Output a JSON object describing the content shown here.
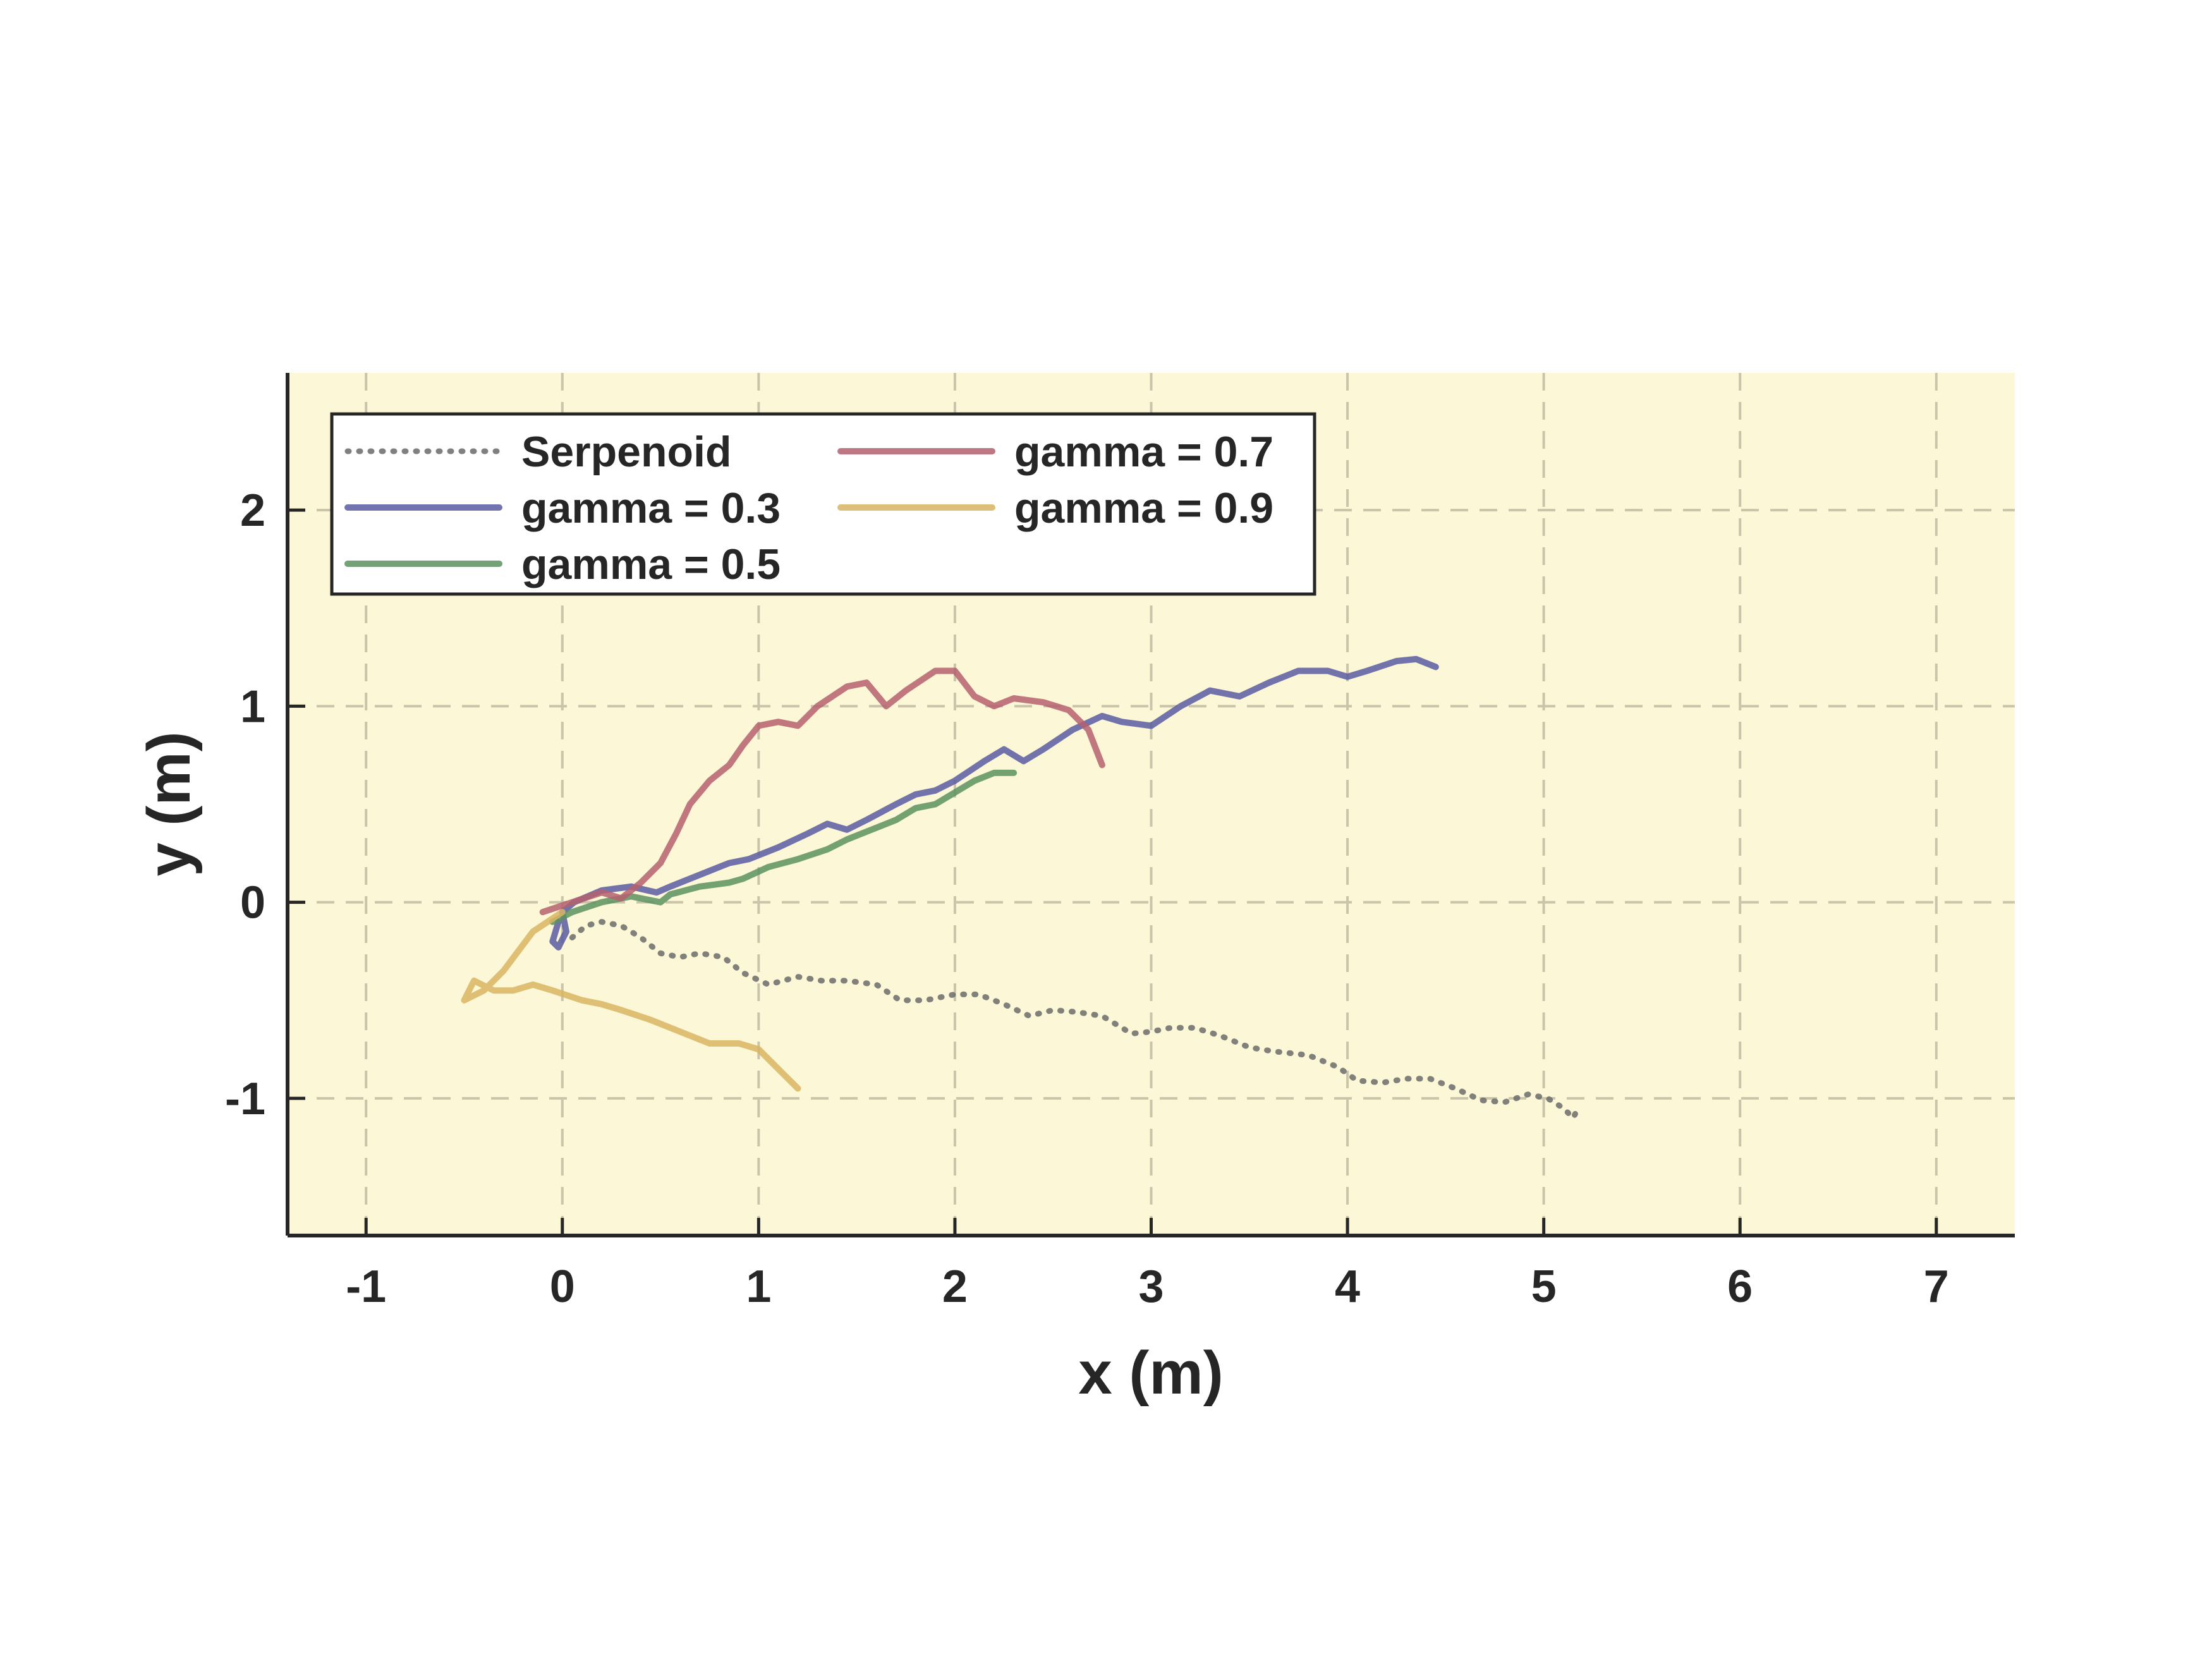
{
  "chart_data": {
    "type": "line",
    "xlabel": "x (m)",
    "ylabel": "y (m)",
    "xlim": [
      -1.4,
      7.4
    ],
    "ylim": [
      -1.7,
      2.7
    ],
    "xticks": [
      -1,
      0,
      1,
      2,
      3,
      4,
      5,
      6,
      7
    ],
    "yticks": [
      -1,
      0,
      1,
      2
    ],
    "grid": true,
    "legend_position": "top-left",
    "colors": {
      "background": "#fcf7d6",
      "grid": "#c9c4aa",
      "axis": "#262626"
    },
    "series": [
      {
        "name": "Serpenoid",
        "color": "#6b6b6b",
        "dashed": true,
        "points": [
          [
            0.05,
            -0.18
          ],
          [
            0.12,
            -0.12
          ],
          [
            0.2,
            -0.1
          ],
          [
            0.3,
            -0.12
          ],
          [
            0.4,
            -0.18
          ],
          [
            0.5,
            -0.26
          ],
          [
            0.6,
            -0.28
          ],
          [
            0.7,
            -0.26
          ],
          [
            0.82,
            -0.28
          ],
          [
            0.92,
            -0.36
          ],
          [
            1.05,
            -0.42
          ],
          [
            1.2,
            -0.38
          ],
          [
            1.32,
            -0.4
          ],
          [
            1.45,
            -0.4
          ],
          [
            1.6,
            -0.42
          ],
          [
            1.72,
            -0.5
          ],
          [
            1.85,
            -0.5
          ],
          [
            2.0,
            -0.47
          ],
          [
            2.12,
            -0.47
          ],
          [
            2.25,
            -0.52
          ],
          [
            2.38,
            -0.58
          ],
          [
            2.5,
            -0.55
          ],
          [
            2.62,
            -0.56
          ],
          [
            2.75,
            -0.58
          ],
          [
            2.9,
            -0.67
          ],
          [
            3.0,
            -0.66
          ],
          [
            3.1,
            -0.64
          ],
          [
            3.22,
            -0.64
          ],
          [
            3.35,
            -0.68
          ],
          [
            3.5,
            -0.74
          ],
          [
            3.62,
            -0.76
          ],
          [
            3.8,
            -0.78
          ],
          [
            3.95,
            -0.84
          ],
          [
            4.05,
            -0.91
          ],
          [
            4.18,
            -0.92
          ],
          [
            4.3,
            -0.9
          ],
          [
            4.42,
            -0.9
          ],
          [
            4.55,
            -0.95
          ],
          [
            4.68,
            -1.01
          ],
          [
            4.8,
            -1.02
          ],
          [
            4.92,
            -0.98
          ],
          [
            5.02,
            -1.0
          ],
          [
            5.1,
            -1.05
          ],
          [
            5.15,
            -1.1
          ],
          [
            5.17,
            -1.06
          ]
        ]
      },
      {
        "name": "gamma = 0.3",
        "color": "#5a5ca3",
        "dashed": false,
        "points": [
          [
            -0.02,
            -0.1
          ],
          [
            -0.05,
            -0.2
          ],
          [
            -0.02,
            -0.23
          ],
          [
            0.02,
            -0.15
          ],
          [
            0.0,
            -0.05
          ],
          [
            0.06,
            0.0
          ],
          [
            0.2,
            0.06
          ],
          [
            0.35,
            0.08
          ],
          [
            0.48,
            0.05
          ],
          [
            0.55,
            0.08
          ],
          [
            0.7,
            0.14
          ],
          [
            0.85,
            0.2
          ],
          [
            0.95,
            0.22
          ],
          [
            1.1,
            0.28
          ],
          [
            1.25,
            0.35
          ],
          [
            1.35,
            0.4
          ],
          [
            1.45,
            0.37
          ],
          [
            1.55,
            0.42
          ],
          [
            1.7,
            0.5
          ],
          [
            1.8,
            0.55
          ],
          [
            1.9,
            0.57
          ],
          [
            2.0,
            0.62
          ],
          [
            2.15,
            0.72
          ],
          [
            2.25,
            0.78
          ],
          [
            2.35,
            0.72
          ],
          [
            2.45,
            0.78
          ],
          [
            2.6,
            0.88
          ],
          [
            2.75,
            0.95
          ],
          [
            2.85,
            0.92
          ],
          [
            3.0,
            0.9
          ],
          [
            3.15,
            1.0
          ],
          [
            3.3,
            1.08
          ],
          [
            3.45,
            1.05
          ],
          [
            3.6,
            1.12
          ],
          [
            3.75,
            1.18
          ],
          [
            3.9,
            1.18
          ],
          [
            4.0,
            1.15
          ],
          [
            4.1,
            1.18
          ],
          [
            4.25,
            1.23
          ],
          [
            4.35,
            1.24
          ],
          [
            4.45,
            1.2
          ]
        ]
      },
      {
        "name": "gamma = 0.5",
        "color": "#5c9260",
        "dashed": false,
        "points": [
          [
            -0.05,
            -0.1
          ],
          [
            0.05,
            -0.05
          ],
          [
            0.2,
            0.0
          ],
          [
            0.35,
            0.03
          ],
          [
            0.5,
            0.0
          ],
          [
            0.55,
            0.04
          ],
          [
            0.7,
            0.08
          ],
          [
            0.85,
            0.1
          ],
          [
            0.92,
            0.12
          ],
          [
            1.05,
            0.18
          ],
          [
            1.2,
            0.22
          ],
          [
            1.35,
            0.27
          ],
          [
            1.45,
            0.32
          ],
          [
            1.55,
            0.36
          ],
          [
            1.7,
            0.42
          ],
          [
            1.8,
            0.48
          ],
          [
            1.9,
            0.5
          ],
          [
            2.0,
            0.56
          ],
          [
            2.1,
            0.62
          ],
          [
            2.2,
            0.66
          ],
          [
            2.3,
            0.66
          ]
        ]
      },
      {
        "name": "gamma = 0.7",
        "color": "#b5606f",
        "dashed": false,
        "points": [
          [
            -0.1,
            -0.05
          ],
          [
            0.05,
            0.0
          ],
          [
            0.2,
            0.05
          ],
          [
            0.3,
            0.02
          ],
          [
            0.4,
            0.1
          ],
          [
            0.5,
            0.2
          ],
          [
            0.58,
            0.35
          ],
          [
            0.65,
            0.5
          ],
          [
            0.75,
            0.62
          ],
          [
            0.85,
            0.7
          ],
          [
            0.92,
            0.8
          ],
          [
            1.0,
            0.9
          ],
          [
            1.1,
            0.92
          ],
          [
            1.2,
            0.9
          ],
          [
            1.3,
            1.0
          ],
          [
            1.45,
            1.1
          ],
          [
            1.55,
            1.12
          ],
          [
            1.65,
            1.0
          ],
          [
            1.75,
            1.08
          ],
          [
            1.9,
            1.18
          ],
          [
            2.0,
            1.18
          ],
          [
            2.1,
            1.05
          ],
          [
            2.2,
            1.0
          ],
          [
            2.3,
            1.04
          ],
          [
            2.45,
            1.02
          ],
          [
            2.58,
            0.98
          ],
          [
            2.68,
            0.88
          ],
          [
            2.75,
            0.7
          ]
        ]
      },
      {
        "name": "gamma = 0.9",
        "color": "#d9b563",
        "dashed": false,
        "points": [
          [
            0.0,
            -0.05
          ],
          [
            -0.15,
            -0.15
          ],
          [
            -0.3,
            -0.35
          ],
          [
            -0.4,
            -0.45
          ],
          [
            -0.5,
            -0.5
          ],
          [
            -0.45,
            -0.4
          ],
          [
            -0.35,
            -0.45
          ],
          [
            -0.25,
            -0.45
          ],
          [
            -0.15,
            -0.42
          ],
          [
            -0.05,
            -0.45
          ],
          [
            0.1,
            -0.5
          ],
          [
            0.2,
            -0.52
          ],
          [
            0.3,
            -0.55
          ],
          [
            0.45,
            -0.6
          ],
          [
            0.6,
            -0.66
          ],
          [
            0.75,
            -0.72
          ],
          [
            0.9,
            -0.72
          ],
          [
            1.0,
            -0.75
          ],
          [
            1.1,
            -0.85
          ],
          [
            1.2,
            -0.95
          ]
        ]
      }
    ]
  }
}
